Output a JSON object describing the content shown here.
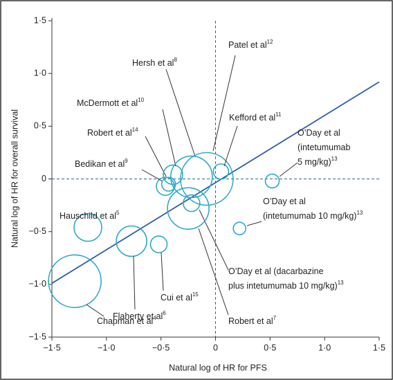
{
  "chart_data": {
    "type": "bubble",
    "x_label": "Natural log of HR for PFS",
    "y_label": "Natural log of HR for overall survival",
    "xlim": [
      -1.5,
      1.5
    ],
    "ylim": [
      -1.5,
      1.5
    ],
    "xticks": [
      {
        "value": -1.5,
        "label": "−1·5"
      },
      {
        "value": -1.0,
        "label": "−1·0"
      },
      {
        "value": -0.5,
        "label": "−0·5"
      },
      0,
      {
        "value": 0.5,
        "label": "0·5"
      },
      {
        "value": 1.0,
        "label": "1·0"
      },
      {
        "value": 1.5,
        "label": "1·5"
      }
    ],
    "yticks": [
      {
        "value": -1.5,
        "label": "−1·5"
      },
      {
        "value": -1.0,
        "label": "−1·0"
      },
      {
        "value": -0.5,
        "label": "−0·5"
      },
      0,
      {
        "value": 0.5,
        "label": "0·5"
      },
      {
        "value": 1.0,
        "label": "1·0"
      },
      {
        "value": 1.5,
        "label": "1·5"
      }
    ],
    "reference_lines": [
      0
    ],
    "bubble_color": "#2fa9c6",
    "fit_line": {
      "color": "#2d5ea8",
      "x": [
        -1.5,
        1.5
      ],
      "y": [
        -0.99,
        0.92
      ]
    },
    "points": [
      {
        "name": [
          "Chapman et al"
        ],
        "ref": "4",
        "x": -1.29,
        "y": -0.97,
        "size": 38
      },
      {
        "name": [
          "Hauschild et al"
        ],
        "ref": "5",
        "x": -1.17,
        "y": -0.46,
        "size": 20
      },
      {
        "name": [
          "Flaherty et al"
        ],
        "ref": "6",
        "x": -0.77,
        "y": -0.59,
        "size": 22
      },
      {
        "name": [
          "Cui et al"
        ],
        "ref": "15",
        "x": -0.52,
        "y": -0.62,
        "size": 12
      },
      {
        "name": [
          "Bedikan et al"
        ],
        "ref": "9",
        "x": -0.46,
        "y": -0.07,
        "size": 13
      },
      {
        "name": [
          "Robert et al"
        ],
        "ref": "14",
        "x": -0.43,
        "y": -0.05,
        "size": 10
      },
      {
        "name": [
          "McDermott et al"
        ],
        "ref": "10",
        "x": -0.39,
        "y": 0.04,
        "size": 14
      },
      {
        "name": [
          "Hersh et al"
        ],
        "ref": "8",
        "x": -0.22,
        "y": 0.02,
        "size": 30
      },
      {
        "name": [
          "Patel et al"
        ],
        "ref": "12",
        "x": -0.08,
        "y": 0.0,
        "size": 38
      },
      {
        "name": [
          "Kefford et al"
        ],
        "ref": "11",
        "x": 0.05,
        "y": 0.07,
        "size": 11
      },
      {
        "name": [
          "O’Day et al",
          "(intetumumab",
          "5 mg/kg)"
        ],
        "ref": "13",
        "x": 0.52,
        "y": -0.02,
        "size": 10
      },
      {
        "name": [
          "O’Day et al",
          "(intetumumab 10 mg/kg)"
        ],
        "ref": "13",
        "x": 0.22,
        "y": -0.47,
        "size": 9
      },
      {
        "name": [
          "O’Day et al (dacarbazine",
          "plus intetumumab 10 mg/kg)"
        ],
        "ref": "13",
        "x": -0.22,
        "y": -0.23,
        "size": 12
      },
      {
        "name": [
          "Robert et al"
        ],
        "ref": "7",
        "x": -0.25,
        "y": -0.28,
        "size": 30
      }
    ]
  }
}
